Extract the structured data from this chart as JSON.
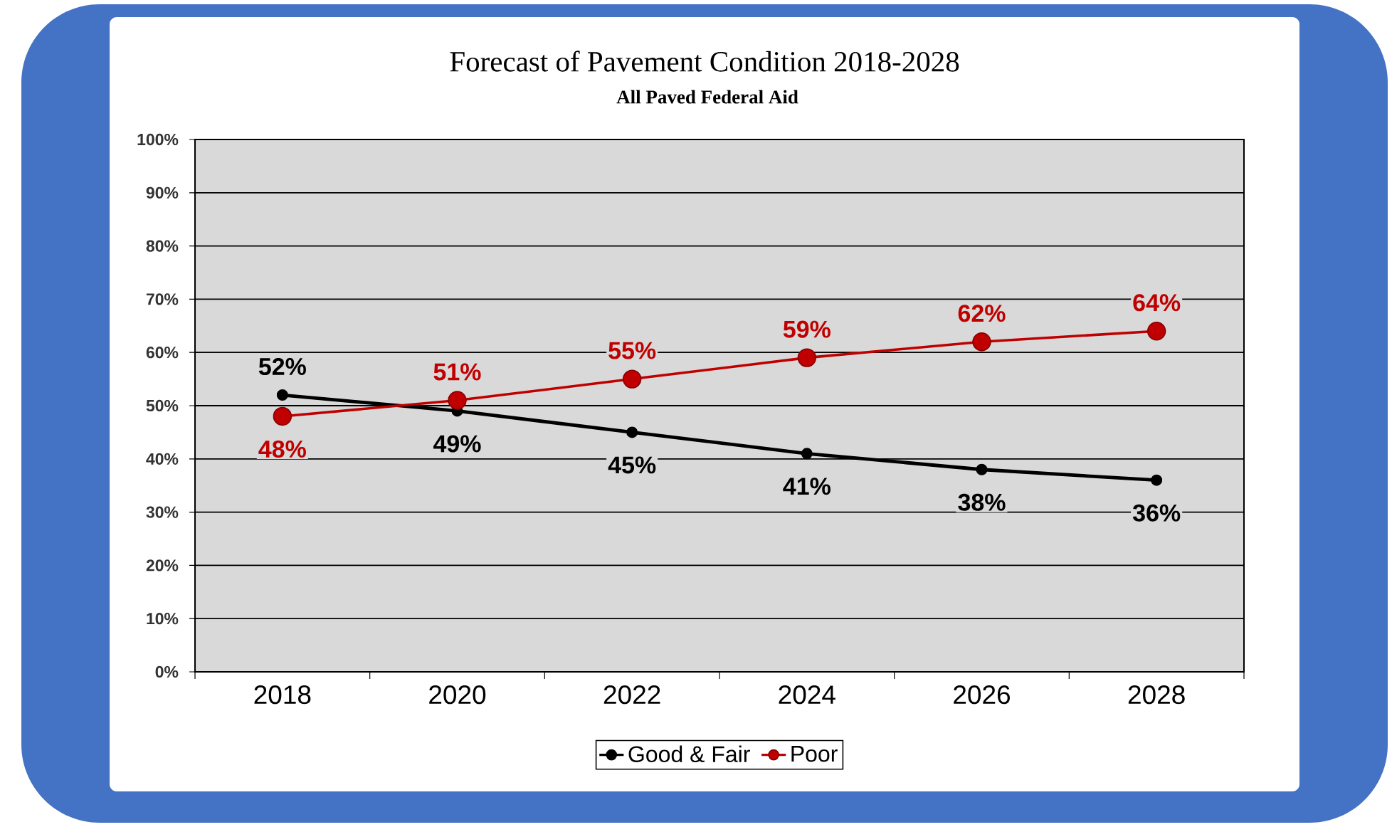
{
  "chart_data": {
    "type": "line",
    "title": "Forecast of Pavement Condition 2018-2028",
    "subtitle": "All Paved Federal Aid",
    "categories": [
      "2018",
      "2020",
      "2022",
      "2024",
      "2026",
      "2028"
    ],
    "series": [
      {
        "name": "Good & Fair",
        "color": "#000000",
        "values": [
          52,
          49,
          45,
          41,
          38,
          36
        ],
        "value_labels": [
          "52%",
          "49%",
          "45%",
          "41%",
          "38%",
          "36%"
        ]
      },
      {
        "name": "Poor",
        "color": "#c00000",
        "values": [
          48,
          51,
          55,
          59,
          62,
          64
        ],
        "value_labels": [
          "48%",
          "51%",
          "55%",
          "59%",
          "62%",
          "64%"
        ]
      }
    ],
    "ylim": [
      0,
      100
    ],
    "yticks": [
      {
        "value": 0,
        "label": "0%"
      },
      {
        "value": 10,
        "label": "10%"
      },
      {
        "value": 20,
        "label": "20%"
      },
      {
        "value": 30,
        "label": "30%"
      },
      {
        "value": 40,
        "label": "40%"
      },
      {
        "value": 50,
        "label": "50%"
      },
      {
        "value": 60,
        "label": "60%"
      },
      {
        "value": 70,
        "label": "70%"
      },
      {
        "value": 80,
        "label": "80%"
      },
      {
        "value": 90,
        "label": "90%"
      },
      {
        "value": 100,
        "label": "100%"
      }
    ],
    "grid": "y",
    "legend": "bottom",
    "marker": "circle"
  }
}
